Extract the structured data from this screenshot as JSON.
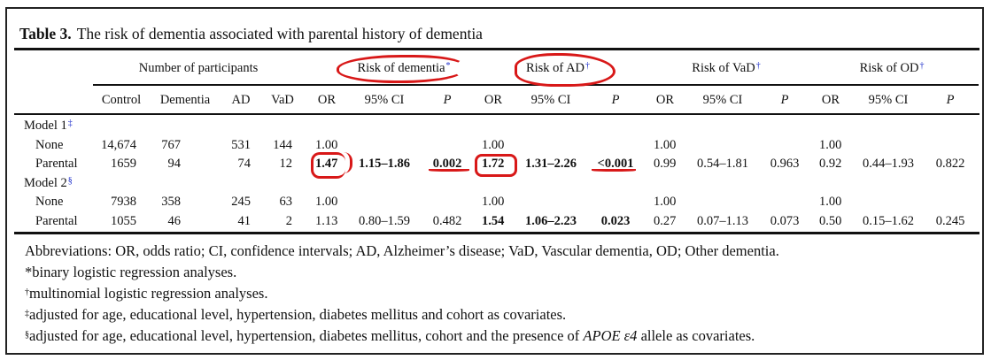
{
  "caption": {
    "label": "Table 3.",
    "text": "The risk of dementia associated with parental history of dementia"
  },
  "group_headers": [
    {
      "label": "Number of participants",
      "marker": ""
    },
    {
      "label": "Risk of dementia",
      "marker": "*"
    },
    {
      "label": "Risk of AD",
      "marker": "†"
    },
    {
      "label": "Risk of VaD",
      "marker": "†"
    },
    {
      "label": "Risk of OD",
      "marker": "†"
    }
  ],
  "columns": [
    "Control",
    "Dementia",
    "AD",
    "VaD",
    "OR",
    "95% CI",
    "P",
    "OR",
    "95% CI",
    "P",
    "OR",
    "95% CI",
    "P",
    "OR",
    "95% CI",
    "P"
  ],
  "models": [
    {
      "label": "Model 1",
      "marker": "‡",
      "rows": [
        {
          "label": "None",
          "cells": [
            "14,674",
            "767",
            "531",
            "144",
            "1.00",
            "",
            "",
            "1.00",
            "",
            "",
            "1.00",
            "",
            "",
            "1.00",
            "",
            ""
          ]
        },
        {
          "label": "Parental",
          "cells": [
            "1659",
            "94",
            "74",
            "12",
            "1.47",
            "1.15–1.86",
            "0.002",
            "1.72",
            "1.31–2.26",
            "<0.001",
            "0.99",
            "0.54–1.81",
            "0.963",
            "0.92",
            "0.44–1.93",
            "0.822"
          ]
        }
      ]
    },
    {
      "label": "Model 2",
      "marker": "§",
      "rows": [
        {
          "label": "None",
          "cells": [
            "7938",
            "358",
            "245",
            "63",
            "1.00",
            "",
            "",
            "1.00",
            "",
            "",
            "1.00",
            "",
            "",
            "1.00",
            "",
            ""
          ]
        },
        {
          "label": "Parental",
          "cells": [
            "1055",
            "46",
            "41",
            "2",
            "1.13",
            "0.80–1.59",
            "0.482",
            "1.54",
            "1.06–2.23",
            "0.023",
            "0.27",
            "0.07–1.13",
            "0.073",
            "0.50",
            "0.15–1.62",
            "0.245"
          ]
        }
      ]
    }
  ],
  "notes": {
    "abbreviations": "Abbreviations: OR, odds ratio; CI, confidence intervals; AD, Alzheimer’s disease; VaD, Vascular dementia, OD; Other dementia.",
    "star_marker": "*",
    "star": "binary logistic regression analyses.",
    "dagger_marker": "†",
    "dagger": "multinomial logistic regression analyses.",
    "ddagger_marker": "‡",
    "ddagger": "adjusted for age, educational level, hypertension, diabetes mellitus and cohort as covariates.",
    "section_marker": "§",
    "section_pre": "adjusted for age, educational level, hypertension, diabetes mellitus, cohort and the presence of ",
    "section_italic": "APOE ε4",
    "section_post": " allele as covariates."
  },
  "colors": {
    "annotation": "#d81818",
    "footnote_marker": "#2233cc"
  }
}
